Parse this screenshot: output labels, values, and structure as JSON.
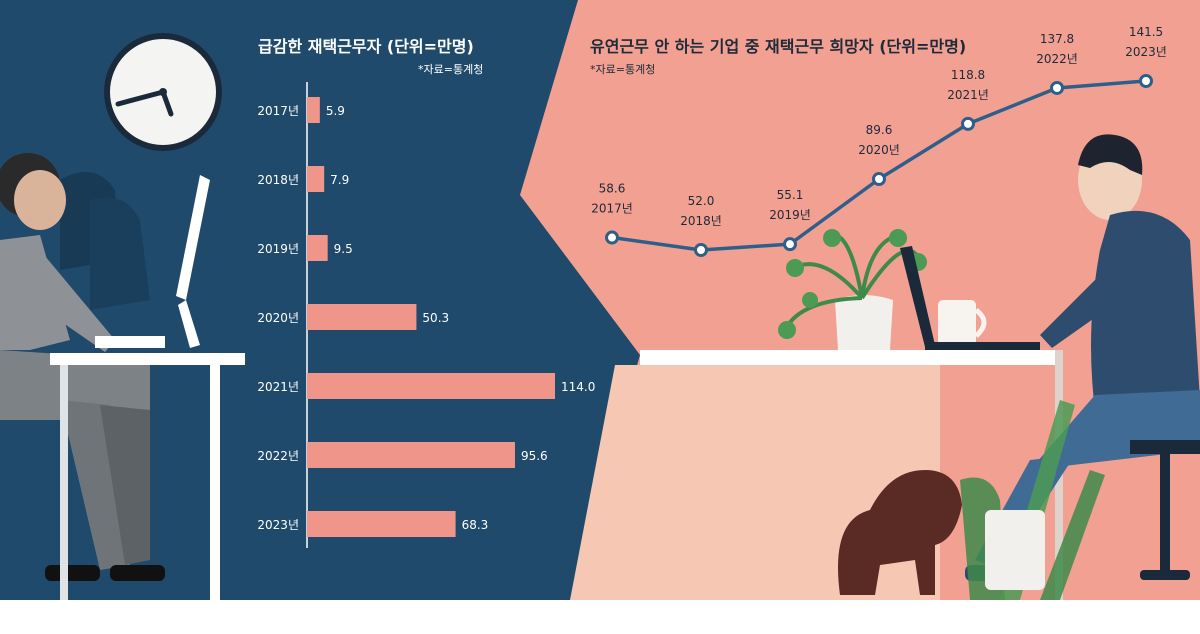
{
  "left_panel": {
    "title": "급감한 재택근무자 (단위=만명)",
    "source": "*자료=통계청"
  },
  "right_panel": {
    "title": "유연근무 안 하는 기업 중 재택근무 희망자 (단위=만명)",
    "source": "*자료=통계청"
  },
  "colors": {
    "left_bg": "#1f4a6b",
    "right_bg": "#f2a091",
    "bar": "#f0958a",
    "line": "#2e5f8a",
    "label_on_dark": "#ffffff",
    "label_on_light": "#1d2a3a"
  },
  "chart_data": [
    {
      "type": "bar",
      "orientation": "horizontal",
      "title": "급감한 재택근무자 (단위=만명)",
      "categories": [
        "2017년",
        "2018년",
        "2019년",
        "2020년",
        "2021년",
        "2022년",
        "2023년"
      ],
      "values": [
        5.9,
        7.9,
        9.5,
        50.3,
        114.0,
        95.6,
        68.3
      ],
      "value_labels": [
        "5.9",
        "7.9",
        "9.5",
        "50.3",
        "114.0",
        "95.6",
        "68.3"
      ],
      "xlim": [
        0,
        114
      ],
      "grid": false
    },
    {
      "type": "line",
      "title": "유연근무 안 하는 기업 중 재택근무 희망자 (단위=만명)",
      "categories": [
        "2017년",
        "2018년",
        "2019년",
        "2020년",
        "2021년",
        "2022년",
        "2023년"
      ],
      "values": [
        58.6,
        52.0,
        55.1,
        89.6,
        118.8,
        137.8,
        141.5
      ],
      "value_labels": [
        "58.6",
        "52.0",
        "55.1",
        "89.6",
        "118.8",
        "137.8",
        "141.5"
      ],
      "ylim": [
        52,
        141.5
      ],
      "grid": false
    }
  ]
}
